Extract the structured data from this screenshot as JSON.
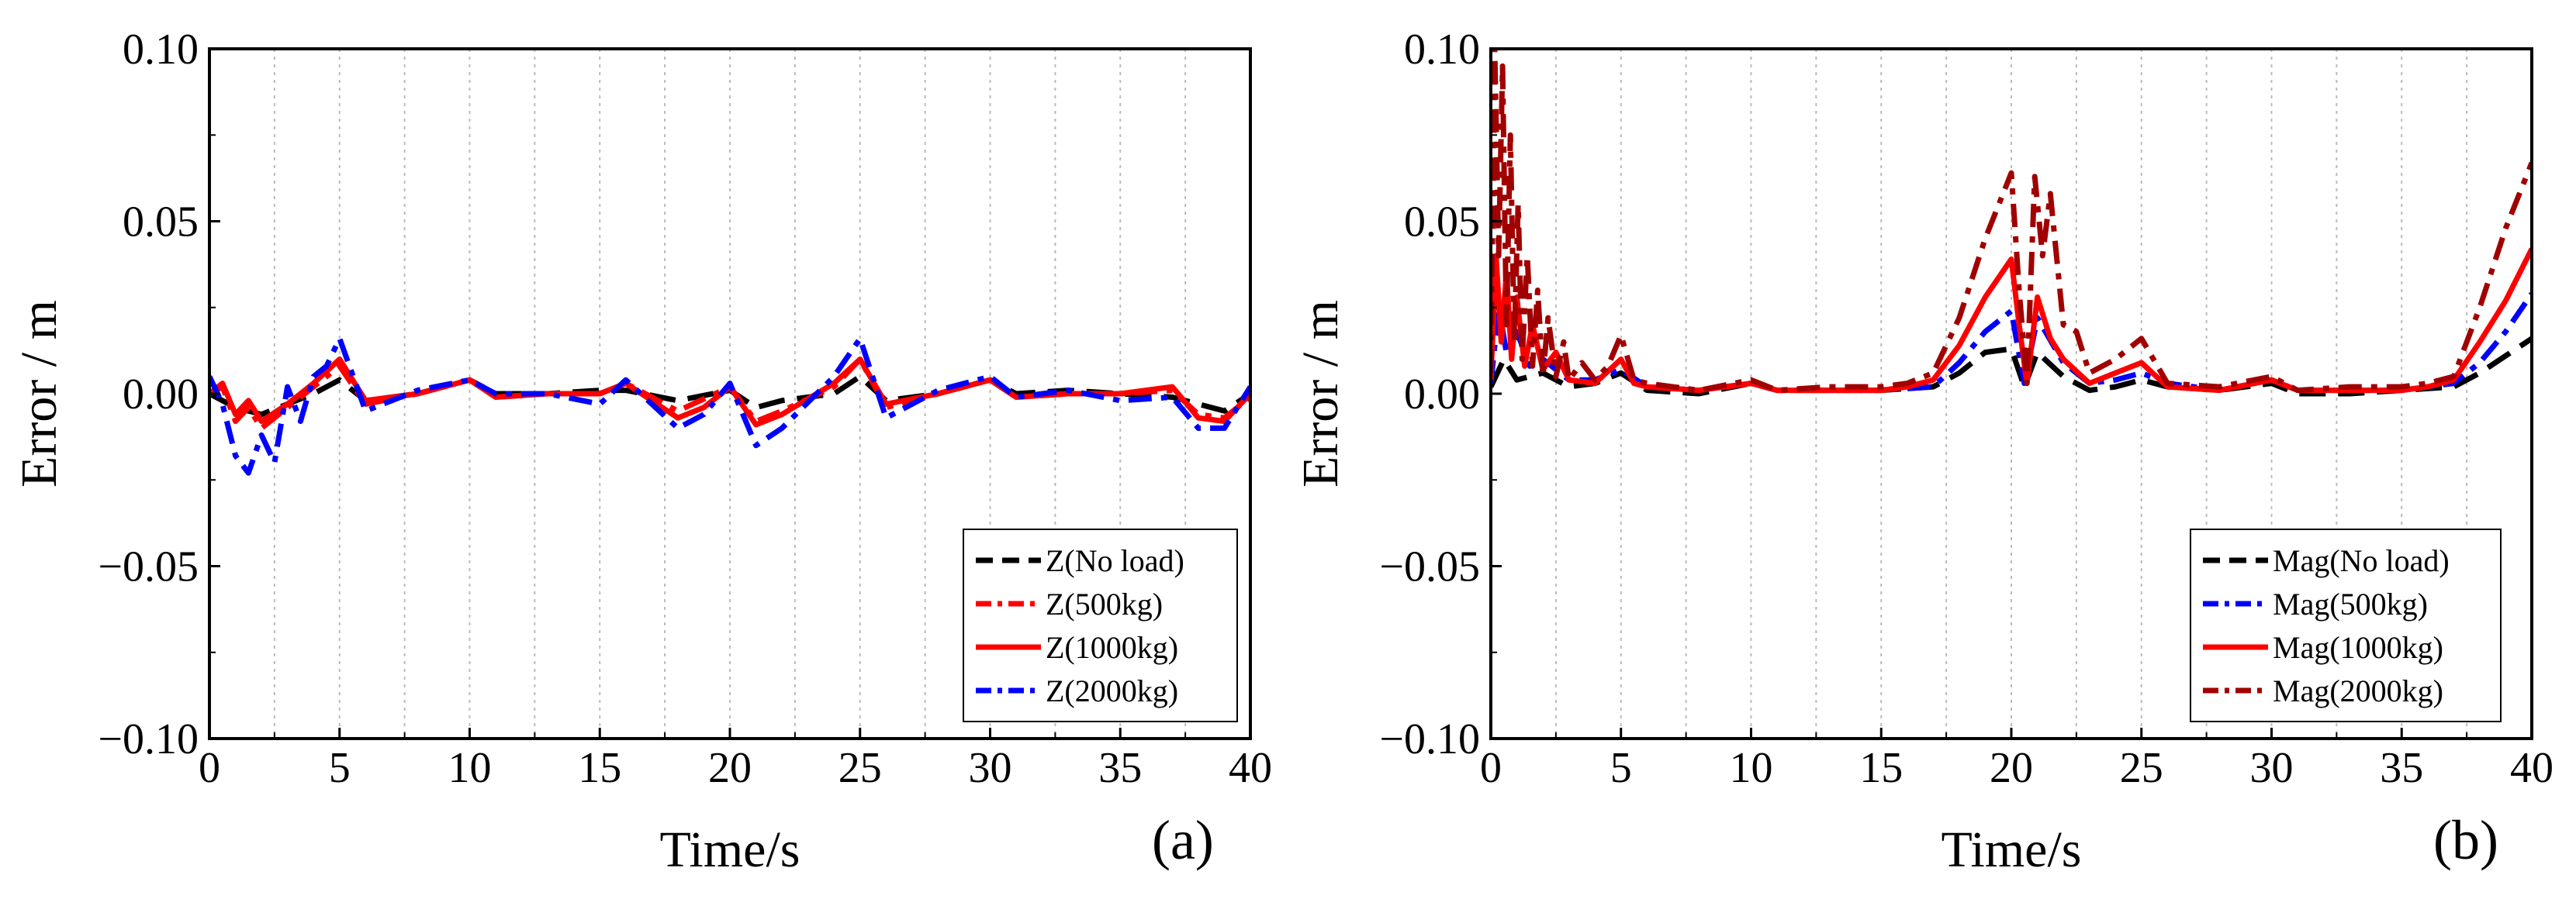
{
  "colors": {
    "black": "#000000",
    "red": "#ff0000",
    "blue": "#0000ff",
    "darkred": "#a00000",
    "grid": "#bbbbbb"
  },
  "chart_data": [
    {
      "type": "line",
      "panel_label": "(a)",
      "xlabel": "Time/s",
      "ylabel": "Error / m",
      "xlim": [
        0,
        40
      ],
      "ylim": [
        -0.1,
        0.1
      ],
      "xticks": [
        0,
        5,
        10,
        15,
        20,
        25,
        30,
        35,
        40
      ],
      "yticks": [
        -0.1,
        -0.05,
        0.0,
        0.05,
        0.1
      ],
      "ytick_labels": [
        "−0.10",
        "−0.05",
        "0.00",
        "0.05",
        "0.10"
      ],
      "grid": "vertical dotted",
      "legend_position": "bottom-right",
      "series": [
        {
          "name": "Z(No load)",
          "color": "#000000",
          "dash": "long",
          "x": [
            0,
            1,
            2,
            3,
            4,
            5,
            6,
            8,
            10,
            11,
            13,
            15,
            16,
            18,
            20,
            21,
            22,
            24,
            25,
            26,
            28,
            30,
            31,
            33,
            35,
            37,
            38,
            39,
            40
          ],
          "y": [
            0,
            -0.004,
            -0.006,
            -0.003,
            0,
            0.004,
            -0.002,
            0,
            0.004,
            0,
            0,
            0.001,
            0.001,
            -0.002,
            0.001,
            -0.004,
            -0.002,
            0,
            0.005,
            -0.002,
            0,
            0.004,
            0,
            0.001,
            0,
            -0.001,
            -0.003,
            -0.005,
            0
          ]
        },
        {
          "name": "Z(500kg)",
          "color": "#ff0000",
          "dash": "dashdot",
          "x": [
            0,
            0.5,
            1,
            1.5,
            2,
            3,
            4,
            5,
            6,
            8,
            10,
            11,
            13,
            15,
            16,
            18,
            20,
            21,
            22,
            24,
            25,
            26,
            28,
            30,
            31,
            33,
            35,
            37,
            38,
            39,
            40
          ],
          "y": [
            0,
            0.002,
            -0.008,
            -0.004,
            -0.01,
            -0.004,
            0.002,
            0.008,
            -0.003,
            0,
            0.004,
            -0.001,
            0,
            0,
            0.003,
            -0.005,
            0.002,
            -0.008,
            -0.005,
            0.002,
            0.01,
            -0.004,
            0,
            0.004,
            -0.001,
            0,
            0,
            0.001,
            -0.006,
            -0.007,
            -0.001
          ]
        },
        {
          "name": "Z(1000kg)",
          "color": "#ff0000",
          "dash": "solid",
          "x": [
            0,
            0.5,
            1,
            1.5,
            2,
            3,
            4,
            5,
            6,
            8,
            10,
            11,
            13,
            15,
            16,
            18,
            19,
            20,
            21,
            22,
            24,
            25,
            26,
            28,
            30,
            31,
            33,
            35,
            37,
            38,
            39,
            40
          ],
          "y": [
            0,
            0.003,
            -0.006,
            -0.002,
            -0.008,
            -0.003,
            0.003,
            0.01,
            -0.002,
            0,
            0.004,
            -0.001,
            0,
            0,
            0.003,
            -0.007,
            -0.004,
            0.002,
            -0.009,
            -0.006,
            0.003,
            0.01,
            -0.003,
            0,
            0.004,
            -0.001,
            0,
            0,
            0.002,
            -0.007,
            -0.008,
            0
          ]
        },
        {
          "name": "Z(2000kg)",
          "color": "#0000ff",
          "dash": "dashdot",
          "x": [
            0,
            0.5,
            1,
            1.5,
            2,
            2.5,
            3,
            3.5,
            4,
            4.5,
            5,
            6,
            8,
            10,
            11,
            13,
            15,
            16,
            18,
            19,
            20,
            21,
            22,
            24,
            25,
            26,
            28,
            30,
            31,
            33,
            35,
            37,
            38,
            39,
            40
          ],
          "y": [
            0.005,
            -0.003,
            -0.018,
            -0.023,
            -0.012,
            -0.02,
            0.002,
            -0.008,
            0.005,
            0.008,
            0.016,
            -0.005,
            0.001,
            0.004,
            0,
            0,
            -0.003,
            0.004,
            -0.01,
            -0.006,
            0.003,
            -0.015,
            -0.01,
            0.005,
            0.016,
            -0.007,
            0.001,
            0.005,
            -0.001,
            0.001,
            -0.002,
            -0.001,
            -0.01,
            -0.01,
            0.002
          ]
        }
      ]
    },
    {
      "type": "line",
      "panel_label": "(b)",
      "xlabel": "Time/s",
      "ylabel": "Error / m",
      "xlim": [
        0,
        40
      ],
      "ylim": [
        -0.1,
        0.1
      ],
      "xticks": [
        0,
        5,
        10,
        15,
        20,
        25,
        30,
        35,
        40
      ],
      "yticks": [
        -0.1,
        -0.05,
        0.0,
        0.05,
        0.1
      ],
      "ytick_labels": [
        "−0.10",
        "−0.05",
        "0.00",
        "0.05",
        "0.10"
      ],
      "grid": "vertical dotted",
      "legend_position": "bottom-right",
      "series": [
        {
          "name": "Mag(No load)",
          "color": "#000000",
          "dash": "long",
          "x": [
            0,
            0.5,
            1,
            2,
            3,
            4,
            5,
            6,
            8,
            10,
            11,
            13,
            15,
            17,
            18,
            19,
            20,
            20.5,
            21,
            22,
            23,
            24,
            25,
            26,
            28,
            30,
            31,
            33,
            35,
            37,
            38,
            39,
            40
          ],
          "y": [
            0.002,
            0.01,
            0.004,
            0.006,
            0.002,
            0.003,
            0.006,
            0.001,
            0,
            0.003,
            0.001,
            0.001,
            0.001,
            0.002,
            0.006,
            0.012,
            0.013,
            0.002,
            0.012,
            0.005,
            0.001,
            0.002,
            0.004,
            0.002,
            0.001,
            0.003,
            0,
            0,
            0.001,
            0.002,
            0.006,
            0.011,
            0.016
          ]
        },
        {
          "name": "Mag(500kg)",
          "color": "#0000ff",
          "dash": "dashdot",
          "x": [
            0,
            0.3,
            0.6,
            1,
            1.5,
            2,
            3,
            4,
            5,
            6,
            8,
            10,
            11,
            13,
            15,
            17,
            18,
            19,
            20,
            20.5,
            21,
            22,
            23,
            24,
            25,
            26,
            28,
            30,
            31,
            33,
            35,
            37,
            38,
            39,
            40
          ],
          "y": [
            0.003,
            0.025,
            0.012,
            0.018,
            0.008,
            0.01,
            0.004,
            0.004,
            0.007,
            0.002,
            0.001,
            0.003,
            0.001,
            0.001,
            0.001,
            0.002,
            0.009,
            0.018,
            0.024,
            0.003,
            0.022,
            0.009,
            0.003,
            0.004,
            0.006,
            0.003,
            0.001,
            0.004,
            0.001,
            0.001,
            0.001,
            0.003,
            0.009,
            0.018,
            0.029
          ]
        },
        {
          "name": "Mag(1000kg)",
          "color": "#ff0000",
          "dash": "solid",
          "x": [
            0,
            0.2,
            0.4,
            0.6,
            0.8,
            1,
            1.3,
            1.6,
            2,
            2.5,
            3,
            4,
            5,
            5.5,
            6,
            8,
            10,
            11,
            13,
            15,
            16,
            17,
            18,
            19,
            20,
            20.3,
            20.6,
            21,
            21.5,
            22,
            23,
            24,
            25,
            26,
            28,
            30,
            31,
            33,
            35,
            36,
            37,
            38,
            39,
            40
          ],
          "y": [
            0.004,
            0.04,
            0.015,
            0.035,
            0.01,
            0.028,
            0.008,
            0.02,
            0.007,
            0.012,
            0.004,
            0.003,
            0.01,
            0.003,
            0.002,
            0.001,
            0.003,
            0.001,
            0.001,
            0.001,
            0.002,
            0.004,
            0.014,
            0.028,
            0.039,
            0.02,
            0.003,
            0.028,
            0.016,
            0.01,
            0.003,
            0.006,
            0.009,
            0.002,
            0.001,
            0.004,
            0.001,
            0.001,
            0.001,
            0.002,
            0.004,
            0.015,
            0.027,
            0.042
          ]
        },
        {
          "name": "Mag(2000kg)",
          "color": "#a00000",
          "dash": "dashdot",
          "x": [
            0,
            0.15,
            0.3,
            0.45,
            0.6,
            0.75,
            0.9,
            1.05,
            1.2,
            1.4,
            1.6,
            1.8,
            2,
            2.2,
            2.5,
            2.8,
            3,
            3.5,
            4,
            4.5,
            5,
            5.5,
            6,
            8,
            10,
            11,
            13,
            15,
            16,
            17,
            18,
            19,
            20,
            20.3,
            20.6,
            20.9,
            21.2,
            21.5,
            22,
            22.5,
            23,
            24,
            25,
            26,
            28,
            30,
            31,
            33,
            35,
            36,
            37,
            38,
            39,
            40
          ],
          "y": [
            0.006,
            0.1,
            0.04,
            0.095,
            0.02,
            0.075,
            0.015,
            0.055,
            0.01,
            0.04,
            0.008,
            0.03,
            0.005,
            0.022,
            0.005,
            0.015,
            0.004,
            0.009,
            0.004,
            0.008,
            0.017,
            0.004,
            0.003,
            0.001,
            0.004,
            0.001,
            0.002,
            0.002,
            0.003,
            0.006,
            0.022,
            0.045,
            0.064,
            0.03,
            0.003,
            0.063,
            0.04,
            0.058,
            0.02,
            0.018,
            0.006,
            0.01,
            0.016,
            0.003,
            0.002,
            0.005,
            0.001,
            0.002,
            0.002,
            0.003,
            0.005,
            0.025,
            0.048,
            0.067
          ]
        }
      ]
    }
  ]
}
